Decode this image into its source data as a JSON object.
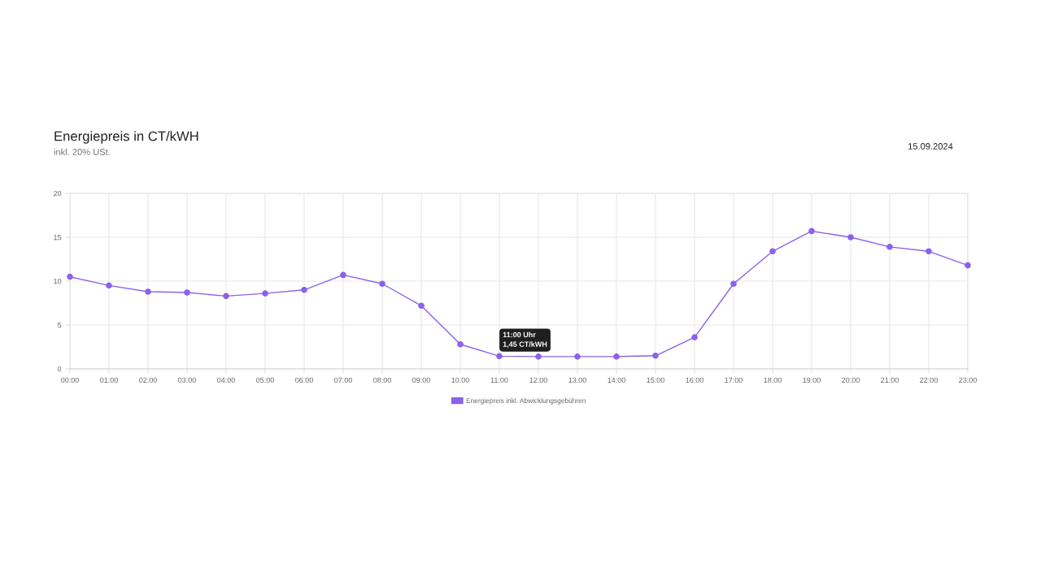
{
  "chart_data": {
    "type": "line",
    "title": "Energiepreis in CT/kWH",
    "subtitle": "inkl. 20% USt.",
    "categories": [
      "00:00",
      "01:00",
      "02:00",
      "03:00",
      "04:00",
      "05:00",
      "06:00",
      "07:00",
      "08:00",
      "09:00",
      "10:00",
      "11:00",
      "12:00",
      "13:00",
      "14:00",
      "15:00",
      "16:00",
      "17:00",
      "18:00",
      "19:00",
      "20:00",
      "21:00",
      "22:00",
      "23:00"
    ],
    "series": [
      {
        "name": "Energiepreis inkl. Abwicklungsgebühren",
        "color": "#8b62e8",
        "values": [
          10.5,
          9.5,
          8.8,
          8.7,
          8.3,
          8.6,
          9.0,
          10.7,
          9.7,
          7.2,
          2.8,
          1.45,
          1.4,
          1.4,
          1.4,
          1.5,
          3.6,
          9.7,
          13.4,
          15.7,
          15.0,
          13.9,
          13.4,
          11.8
        ]
      }
    ],
    "ylim": [
      0,
      20
    ],
    "yticks": [
      0,
      5,
      10,
      15,
      20
    ],
    "grid": true,
    "legend": "bottom",
    "marker": "circle",
    "line_style": "solid",
    "annotations": [
      "15.09.2024",
      {
        "text": "11:00 Uhr\n1,45 CT/kWH",
        "x": "11:00",
        "y": 1.45
      }
    ]
  }
}
